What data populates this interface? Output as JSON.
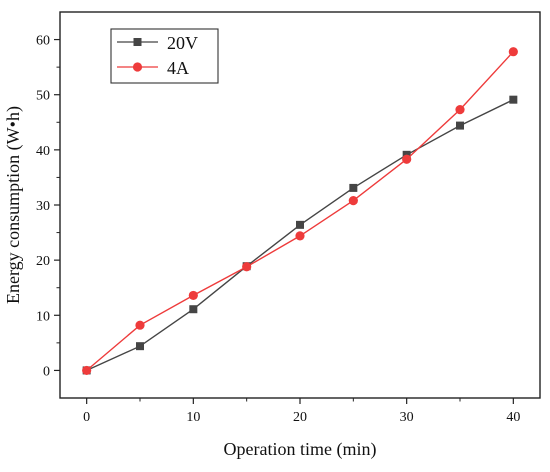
{
  "chart_data": {
    "type": "line",
    "title": "",
    "xlabel": "Operation time (min)",
    "ylabel": "Energy consumption (W•h)",
    "xlim": [
      -2.5,
      42.5
    ],
    "ylim": [
      -5,
      65
    ],
    "xticks": [
      0,
      10,
      20,
      30,
      40
    ],
    "yticks": [
      0,
      10,
      20,
      30,
      40,
      50,
      60
    ],
    "grid": false,
    "legend_position": "top-left",
    "series": [
      {
        "name": "20V",
        "color": "#454545",
        "marker": "square",
        "x": [
          0,
          5,
          10,
          15,
          20,
          25,
          30,
          35,
          40
        ],
        "y": [
          0,
          4.4,
          11.1,
          18.9,
          26.4,
          33.1,
          39.1,
          44.4,
          49.1
        ]
      },
      {
        "name": "4A",
        "color": "#ee3b3b",
        "marker": "circle",
        "x": [
          0,
          5,
          10,
          15,
          20,
          25,
          30,
          35,
          40
        ],
        "y": [
          0,
          8.2,
          13.6,
          18.8,
          24.4,
          30.8,
          38.3,
          47.3,
          57.8
        ]
      }
    ]
  }
}
